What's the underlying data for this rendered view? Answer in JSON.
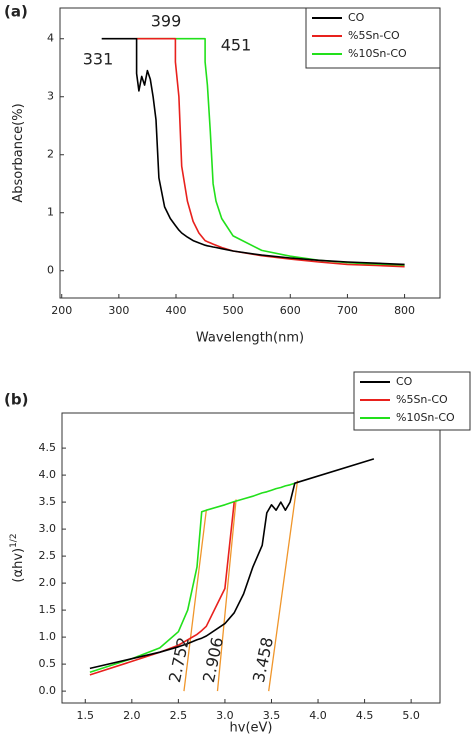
{
  "chart_data": [
    {
      "type": "line",
      "label": "(a)",
      "x_label": "Wavelength(nm)",
      "y_label": "Absorbance(%)",
      "xlim": [
        197,
        862
      ],
      "ylim": [
        -0.47,
        4.53
      ],
      "xticks": [
        200,
        300,
        400,
        500,
        600,
        700,
        800
      ],
      "yticks": [
        0,
        1,
        2,
        3,
        4
      ],
      "legend": "upper right",
      "x": [
        270,
        300,
        331,
        331,
        335,
        340,
        345,
        350,
        355,
        360,
        365,
        370,
        380,
        390,
        399,
        399,
        405,
        410,
        420,
        430,
        440,
        451,
        451,
        455,
        460,
        465,
        470,
        480,
        500,
        550,
        600,
        650,
        700,
        750,
        800
      ],
      "series": [
        {
          "name": "CO",
          "color": "#000000",
          "values": [
            4,
            4,
            4,
            3.4,
            3.1,
            3.35,
            3.2,
            3.45,
            3.3,
            3.0,
            2.6,
            1.6,
            1.1,
            0.9,
            0.78,
            0.78,
            0.7,
            0.65,
            0.58,
            0.52,
            0.48,
            0.44,
            0.44,
            0.43,
            0.42,
            0.41,
            0.4,
            0.38,
            0.34,
            0.27,
            0.22,
            0.18,
            0.15,
            0.13,
            0.11
          ]
        },
        {
          "name": "%5Sn-CO",
          "color": "#e8211d",
          "values": [
            null,
            null,
            4,
            4,
            4,
            4,
            4,
            4,
            4,
            4,
            4,
            4,
            4,
            4,
            4,
            3.6,
            3.0,
            1.8,
            1.2,
            0.85,
            0.65,
            0.52,
            0.52,
            0.5,
            0.48,
            0.46,
            0.44,
            0.4,
            0.34,
            0.26,
            0.2,
            0.15,
            0.11,
            0.09,
            0.07
          ]
        },
        {
          "name": "%10Sn-CO",
          "color": "#22e01b",
          "values": [
            null,
            null,
            4,
            4,
            4,
            4,
            4,
            4,
            4,
            4,
            4,
            4,
            4,
            4,
            4,
            4,
            4,
            4,
            4,
            4,
            4,
            4,
            3.6,
            3.2,
            2.4,
            1.5,
            1.2,
            0.9,
            0.6,
            0.35,
            0.25,
            0.18,
            0.14,
            0.11,
            0.09
          ]
        }
      ],
      "annotations": [
        {
          "text": "331",
          "color": "#000000"
        },
        {
          "text": "399",
          "color": "#e8211d"
        },
        {
          "text": "451",
          "color": "#22e01b"
        }
      ]
    },
    {
      "type": "line",
      "label": "(b)",
      "x_label": "hv(eV)",
      "y_label": "(αhv)",
      "y_label_sup": "1/2",
      "xlim": [
        1.25,
        5.31
      ],
      "ylim": [
        -0.22,
        5.15
      ],
      "xticks": [
        1.5,
        {
          "value": 2,
          "label": "2.0"
        },
        2.5,
        {
          "value": 3,
          "label": "3.0"
        },
        3.5,
        {
          "value": 4,
          "label": "4.0"
        },
        4.5,
        {
          "value": 5,
          "label": "5.0"
        }
      ],
      "yticks": [
        {
          "value": 0,
          "label": "0.0"
        },
        0.5,
        {
          "value": 1,
          "label": "1.0"
        },
        1.5,
        {
          "value": 2,
          "label": "2.0"
        },
        2.5,
        {
          "value": 3,
          "label": "3.0"
        },
        3.5,
        {
          "value": 4,
          "label": "4.0"
        },
        4.5
      ],
      "legend": "upper right",
      "x": [
        1.55,
        2.0,
        2.3,
        2.5,
        2.6,
        2.7,
        2.75,
        2.8,
        3.0,
        3.1,
        3.2,
        3.3,
        3.4,
        3.45,
        3.5,
        3.55,
        3.6,
        3.65,
        3.7,
        3.75,
        4.6
      ],
      "series": [
        {
          "name": "CO",
          "color": "#000000",
          "values": [
            0.42,
            0.6,
            0.72,
            0.82,
            0.88,
            0.95,
            0.98,
            1.02,
            1.25,
            1.45,
            1.8,
            2.3,
            2.7,
            3.3,
            3.45,
            3.35,
            3.5,
            3.35,
            3.5,
            3.85,
            4.3
          ]
        },
        {
          "name": "%5Sn-CO",
          "color": "#e8211d",
          "values": [
            0.3,
            0.55,
            0.72,
            0.85,
            0.95,
            1.05,
            1.12,
            1.2,
            1.9,
            3.5,
            null,
            null,
            null,
            null,
            null,
            null,
            null,
            null,
            null,
            null,
            null
          ]
        },
        {
          "name": "%10Sn-CO",
          "color": "#22e01b",
          "values": [
            0.35,
            0.6,
            0.8,
            1.1,
            1.5,
            2.3,
            3.32,
            3.35,
            3.45,
            3.51,
            3.56,
            3.61,
            3.67,
            3.69,
            3.72,
            3.75,
            3.77,
            3.8,
            3.82,
            3.85,
            null
          ]
        }
      ],
      "fit_lines": [
        {
          "color": "#f0962b",
          "x": [
            2.56,
            2.8
          ],
          "y": [
            0,
            3.35
          ]
        },
        {
          "color": "#f0962b",
          "x": [
            2.92,
            3.12
          ],
          "y": [
            0,
            3.55
          ]
        },
        {
          "color": "#f0962b",
          "x": [
            3.47,
            3.78
          ],
          "y": [
            0,
            3.9
          ]
        }
      ],
      "annotations": [
        {
          "text": "2.752",
          "color": "#22e01b"
        },
        {
          "text": "2.906",
          "color": "#e8211d"
        },
        {
          "text": "3.458",
          "color": "#000000"
        }
      ]
    }
  ]
}
